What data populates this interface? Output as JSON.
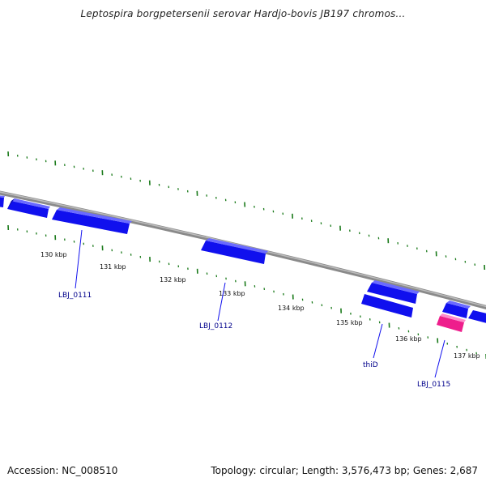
{
  "title": "Leptospira borgpetersenii serovar Hardjo-bovis JB197 chromos...",
  "footer": {
    "accession": "Accession: NC_008510",
    "summary": "Topology: circular; Length: 3,576,473 bp; Genes: 2,687"
  },
  "colors": {
    "forward_gene": "#1010ee",
    "reverse_gene": "#1010ee",
    "highlight_gene": "#ee1e8c",
    "backbone": "#888888",
    "tick": "#1a7a1a",
    "gene_label": "#00008b"
  },
  "scale": {
    "tick_labels": [
      "130 kbp",
      "131 kbp",
      "132 kbp",
      "133 kbp",
      "134 kbp",
      "135 kbp",
      "136 kbp",
      "137 kbp"
    ]
  },
  "genes": [
    {
      "label": "LBJ_0111"
    },
    {
      "label": "LBJ_0112"
    },
    {
      "label": "thiD"
    },
    {
      "label": "LBJ_0115"
    }
  ]
}
